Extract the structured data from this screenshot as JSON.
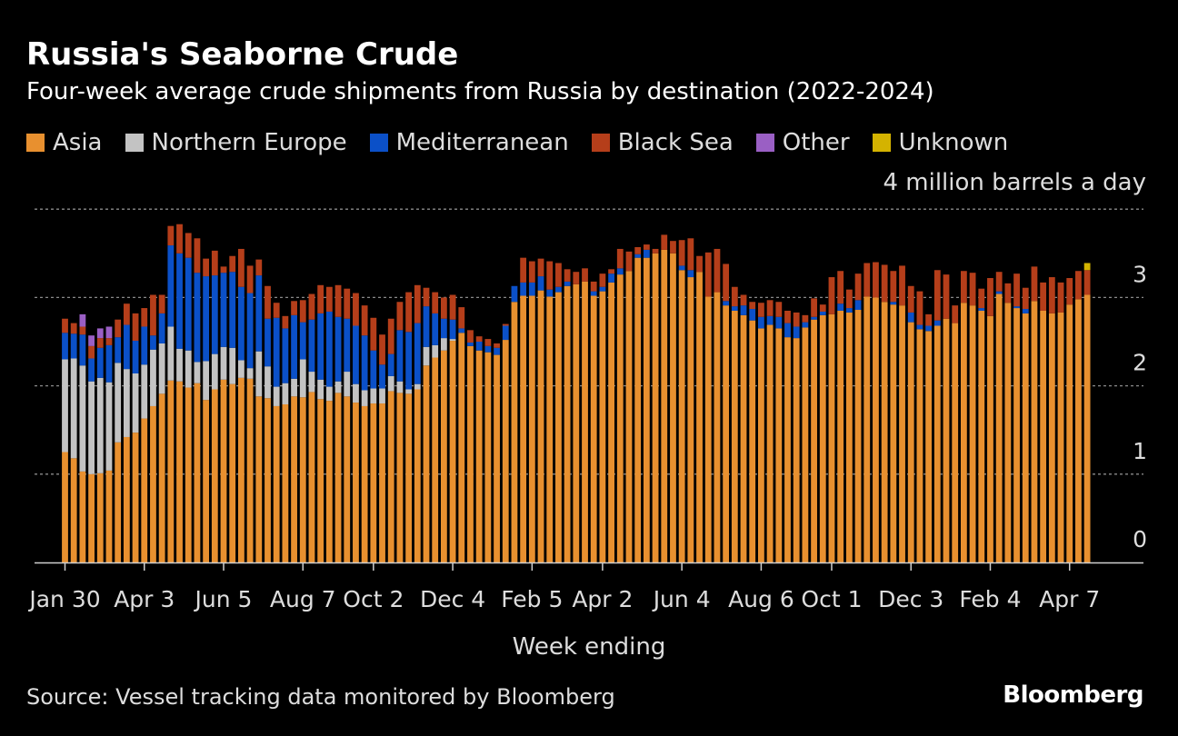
{
  "chart_data": {
    "type": "bar",
    "stacked": true,
    "title": "Russia's Seaborne Crude",
    "subtitle": "Four-week average crude shipments from Russia by destination (2022-2024)",
    "unit_label": "4 million barrels a day",
    "xlabel": "Week ending",
    "ylim": [
      0,
      4
    ],
    "yticks": [
      "0",
      "1",
      "2",
      "3"
    ],
    "grid": true,
    "legend_position": "top",
    "tick_labels": [
      {
        "label": "Jan 30",
        "index": 0
      },
      {
        "label": "Apr 3",
        "index": 9
      },
      {
        "label": "Jun 5",
        "index": 18
      },
      {
        "label": "Aug 7",
        "index": 27
      },
      {
        "label": "Oct 2",
        "index": 35
      },
      {
        "label": "Dec 4",
        "index": 44
      },
      {
        "label": "Feb 5",
        "index": 53
      },
      {
        "label": "Apr 2",
        "index": 61
      },
      {
        "label": "Jun 4",
        "index": 70
      },
      {
        "label": "Aug 6",
        "index": 79
      },
      {
        "label": "Oct 1",
        "index": 87
      },
      {
        "label": "Dec 3",
        "index": 96
      },
      {
        "label": "Feb 4",
        "index": 105
      },
      {
        "label": "Apr 7",
        "index": 114
      }
    ],
    "series": [
      {
        "name": "Asia",
        "color": "#e8902f",
        "values": [
          1.25,
          1.18,
          1.03,
          1.0,
          1.01,
          1.04,
          1.36,
          1.42,
          1.47,
          1.63,
          1.77,
          1.91,
          2.06,
          2.05,
          1.98,
          2.03,
          1.84,
          1.96,
          2.07,
          2.02,
          2.09,
          2.08,
          1.88,
          1.86,
          1.77,
          1.79,
          1.88,
          1.87,
          1.93,
          1.85,
          1.83,
          1.92,
          1.88,
          1.81,
          1.77,
          1.8,
          1.8,
          1.94,
          1.92,
          1.91,
          1.96,
          2.23,
          2.32,
          2.4,
          2.51,
          2.6,
          2.45,
          2.4,
          2.38,
          2.35,
          2.52,
          2.95,
          3.02,
          3.02,
          3.08,
          3.01,
          3.06,
          3.13,
          3.15,
          3.18,
          3.02,
          3.07,
          3.17,
          3.26,
          3.3,
          3.45,
          3.45,
          3.5,
          3.54,
          3.5,
          3.31,
          3.23,
          3.29,
          3.01,
          3.06,
          2.91,
          2.85,
          2.8,
          2.74,
          2.65,
          2.69,
          2.65,
          2.55,
          2.54,
          2.66,
          2.75,
          2.8,
          2.81,
          2.85,
          2.83,
          2.86,
          3.01,
          3.0,
          2.95,
          2.92,
          2.91,
          2.72,
          2.64,
          2.62,
          2.68,
          2.76,
          2.71,
          2.94,
          2.91,
          2.85,
          2.79,
          3.04,
          2.94,
          2.88,
          2.82,
          2.96,
          2.85,
          2.82,
          2.83,
          2.92,
          2.98,
          3.03
        ]
      },
      {
        "name": "Northern Europe",
        "color": "#c3c3c3",
        "values": [
          1.05,
          1.13,
          1.2,
          1.05,
          1.08,
          1.0,
          0.9,
          0.77,
          0.67,
          0.61,
          0.64,
          0.57,
          0.61,
          0.37,
          0.42,
          0.24,
          0.44,
          0.4,
          0.37,
          0.41,
          0.2,
          0.12,
          0.51,
          0.36,
          0.22,
          0.24,
          0.2,
          0.43,
          0.23,
          0.22,
          0.16,
          0.13,
          0.28,
          0.21,
          0.18,
          0.17,
          0.17,
          0.17,
          0.13,
          0.05,
          0.06,
          0.21,
          0.14,
          0.14,
          0.02,
          0.0,
          0.0,
          0.0,
          0.0,
          0.0,
          0.0,
          0.0,
          0.0,
          0.0,
          0.0,
          0.0,
          0.0,
          0.0,
          0.0,
          0.0,
          0.0,
          0.0,
          0.0,
          0.0,
          0.0,
          0.0,
          0.0,
          0.0,
          0.0,
          0.0,
          0.0,
          0.0,
          0.0,
          0.0,
          0.0,
          0.0,
          0.0,
          0.0,
          0.0,
          0.0,
          0.0,
          0.0,
          0.0,
          0.0,
          0.0,
          0.0,
          0.0,
          0.0,
          0.0,
          0.0,
          0.0,
          0.0,
          0.0,
          0.0,
          0.0,
          0.0,
          0.0,
          0.0,
          0.0,
          0.0,
          0.0,
          0.0,
          0.0,
          0.0,
          0.0,
          0.0,
          0.0,
          0.0,
          0.0,
          0.0,
          0.0,
          0.0,
          0.0,
          0.0,
          0.0,
          0.0,
          0.0
        ]
      },
      {
        "name": "Mediterranean",
        "color": "#0b50c8",
        "values": [
          0.3,
          0.28,
          0.35,
          0.26,
          0.34,
          0.42,
          0.29,
          0.5,
          0.37,
          0.43,
          0.16,
          0.34,
          0.92,
          1.08,
          1.05,
          1.01,
          0.96,
          0.89,
          0.84,
          0.86,
          0.83,
          0.85,
          0.86,
          0.54,
          0.78,
          0.62,
          0.72,
          0.42,
          0.59,
          0.75,
          0.85,
          0.73,
          0.6,
          0.66,
          0.62,
          0.43,
          0.27,
          0.25,
          0.58,
          0.65,
          0.69,
          0.46,
          0.36,
          0.22,
          0.22,
          0.05,
          0.04,
          0.1,
          0.07,
          0.08,
          0.16,
          0.18,
          0.15,
          0.15,
          0.16,
          0.08,
          0.06,
          0.05,
          0.0,
          0.0,
          0.05,
          0.05,
          0.1,
          0.07,
          0.0,
          0.04,
          0.09,
          0.0,
          0.0,
          0.0,
          0.05,
          0.08,
          0.0,
          0.0,
          0.0,
          0.05,
          0.05,
          0.11,
          0.13,
          0.13,
          0.1,
          0.13,
          0.16,
          0.13,
          0.06,
          0.03,
          0.04,
          0.0,
          0.08,
          0.05,
          0.11,
          0.0,
          0.0,
          0.0,
          0.03,
          0.0,
          0.11,
          0.05,
          0.06,
          0.06,
          0.0,
          0.0,
          0.0,
          0.0,
          0.03,
          0.0,
          0.03,
          0.0,
          0.02,
          0.05,
          0.0,
          0.0,
          0.0,
          0.0,
          0.0,
          0.0,
          0.0
        ]
      },
      {
        "name": "Black Sea",
        "color": "#b53e1a",
        "values": [
          0.16,
          0.12,
          0.09,
          0.14,
          0.11,
          0.08,
          0.2,
          0.24,
          0.31,
          0.21,
          0.46,
          0.21,
          0.22,
          0.33,
          0.28,
          0.39,
          0.2,
          0.28,
          0.07,
          0.18,
          0.43,
          0.31,
          0.18,
          0.37,
          0.17,
          0.14,
          0.16,
          0.25,
          0.29,
          0.32,
          0.28,
          0.36,
          0.34,
          0.37,
          0.34,
          0.37,
          0.34,
          0.4,
          0.32,
          0.45,
          0.43,
          0.21,
          0.24,
          0.24,
          0.28,
          0.24,
          0.14,
          0.06,
          0.08,
          0.05,
          0.02,
          0.0,
          0.28,
          0.24,
          0.2,
          0.32,
          0.27,
          0.14,
          0.14,
          0.15,
          0.11,
          0.15,
          0.05,
          0.22,
          0.22,
          0.08,
          0.06,
          0.05,
          0.17,
          0.14,
          0.29,
          0.36,
          0.18,
          0.5,
          0.49,
          0.42,
          0.22,
          0.12,
          0.08,
          0.16,
          0.18,
          0.17,
          0.14,
          0.16,
          0.08,
          0.21,
          0.08,
          0.42,
          0.37,
          0.21,
          0.3,
          0.38,
          0.4,
          0.42,
          0.35,
          0.45,
          0.3,
          0.38,
          0.13,
          0.57,
          0.5,
          0.2,
          0.36,
          0.37,
          0.22,
          0.43,
          0.22,
          0.22,
          0.37,
          0.24,
          0.39,
          0.32,
          0.41,
          0.34,
          0.3,
          0.32,
          0.28
        ]
      },
      {
        "name": "Other",
        "color": "#9a5fc4",
        "values": [
          0.0,
          0.0,
          0.14,
          0.12,
          0.11,
          0.13,
          0.0,
          0.0,
          0.0,
          0.0,
          0.0,
          0.0,
          0.0,
          0.0,
          0.0,
          0.0,
          0.0,
          0.0,
          0.0,
          0.0,
          0.0,
          0.0,
          0.0,
          0.0,
          0.0,
          0.0,
          0.0,
          0.0,
          0.0,
          0.0,
          0.0,
          0.0,
          0.0,
          0.0,
          0.0,
          0.0,
          0.0,
          0.0,
          0.0,
          0.0,
          0.0,
          0.0,
          0.0,
          0.0,
          0.0,
          0.0,
          0.0,
          0.0,
          0.0,
          0.0,
          0.0,
          0.0,
          0.0,
          0.0,
          0.0,
          0.0,
          0.0,
          0.0,
          0.0,
          0.0,
          0.0,
          0.0,
          0.0,
          0.0,
          0.0,
          0.0,
          0.0,
          0.0,
          0.0,
          0.0,
          0.0,
          0.0,
          0.0,
          0.0,
          0.0,
          0.0,
          0.0,
          0.0,
          0.0,
          0.0,
          0.0,
          0.0,
          0.0,
          0.0,
          0.0,
          0.0,
          0.0,
          0.0,
          0.0,
          0.0,
          0.0,
          0.0,
          0.0,
          0.0,
          0.0,
          0.0,
          0.0,
          0.0,
          0.0,
          0.0,
          0.0,
          0.0,
          0.0,
          0.0,
          0.0,
          0.0,
          0.0,
          0.0,
          0.0,
          0.0,
          0.0,
          0.0,
          0.0,
          0.0,
          0.0,
          0.0,
          0.0
        ]
      },
      {
        "name": "Unknown",
        "color": "#d4b300",
        "values": [
          0.0,
          0.0,
          0.0,
          0.0,
          0.0,
          0.0,
          0.0,
          0.0,
          0.0,
          0.0,
          0.0,
          0.0,
          0.0,
          0.0,
          0.0,
          0.0,
          0.0,
          0.0,
          0.0,
          0.0,
          0.0,
          0.0,
          0.0,
          0.0,
          0.0,
          0.0,
          0.0,
          0.0,
          0.0,
          0.0,
          0.0,
          0.0,
          0.0,
          0.0,
          0.0,
          0.0,
          0.0,
          0.0,
          0.0,
          0.0,
          0.0,
          0.0,
          0.0,
          0.0,
          0.0,
          0.0,
          0.0,
          0.0,
          0.0,
          0.0,
          0.0,
          0.0,
          0.0,
          0.0,
          0.0,
          0.0,
          0.0,
          0.0,
          0.0,
          0.0,
          0.0,
          0.0,
          0.0,
          0.0,
          0.0,
          0.0,
          0.0,
          0.0,
          0.0,
          0.0,
          0.0,
          0.0,
          0.0,
          0.0,
          0.0,
          0.0,
          0.0,
          0.0,
          0.0,
          0.0,
          0.0,
          0.0,
          0.0,
          0.0,
          0.0,
          0.0,
          0.0,
          0.0,
          0.0,
          0.0,
          0.0,
          0.0,
          0.0,
          0.0,
          0.0,
          0.0,
          0.0,
          0.0,
          0.0,
          0.0,
          0.0,
          0.0,
          0.0,
          0.0,
          0.0,
          0.0,
          0.0,
          0.0,
          0.0,
          0.0,
          0.0,
          0.0,
          0.0,
          0.0,
          0.0,
          0.0,
          0.08
        ]
      }
    ]
  },
  "legend": [
    {
      "label": "Asia",
      "color": "#e8902f"
    },
    {
      "label": "Northern Europe",
      "color": "#c3c3c3"
    },
    {
      "label": "Mediterranean",
      "color": "#0b50c8"
    },
    {
      "label": "Black Sea",
      "color": "#b53e1a"
    },
    {
      "label": "Other",
      "color": "#9a5fc4"
    },
    {
      "label": "Unknown",
      "color": "#d4b300"
    }
  ],
  "footer": {
    "source": "Source: Vessel tracking data monitored by Bloomberg",
    "brand": "Bloomberg"
  }
}
